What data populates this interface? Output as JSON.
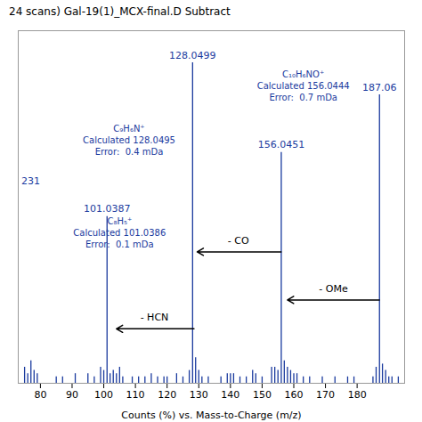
{
  "chart_data": {
    "type": "stem",
    "title": "24 scans) Gal-19(1)_MCX-final.D Subtract",
    "xlabel": "Counts (%) vs. Mass-to-Charge (m/z)",
    "xlim": [
      73,
      195
    ],
    "ylim": [
      0,
      110
    ],
    "xticks": [
      80,
      90,
      100,
      110,
      120,
      130,
      140,
      150,
      160,
      170,
      180
    ],
    "tick_labels": "x",
    "color": "#1a3a9e",
    "x": [
      75,
      76,
      77,
      78,
      79,
      85,
      87,
      91,
      95,
      97,
      99,
      100,
      102,
      103,
      104,
      105,
      106,
      109,
      111,
      113,
      115,
      117,
      119,
      120,
      123,
      125,
      127,
      129,
      130,
      131,
      133,
      137,
      139,
      140,
      141,
      143,
      145,
      147,
      148,
      150,
      153,
      154,
      155,
      157,
      158,
      159,
      160,
      161,
      163,
      165,
      169,
      173,
      177,
      179,
      185,
      186,
      188,
      189,
      190,
      191,
      193,
      101.0387,
      128.0499,
      156.0451,
      187.06
    ],
    "values": [
      5,
      3,
      7,
      4,
      3,
      2,
      2,
      3,
      3,
      2,
      5,
      4,
      3,
      4,
      3,
      5,
      2,
      2,
      2,
      2,
      3,
      2,
      2,
      2,
      3,
      2,
      4,
      8,
      4,
      2,
      2,
      2,
      3,
      3,
      3,
      2,
      2,
      4,
      3,
      2,
      5,
      5,
      4,
      7,
      5,
      4,
      3,
      3,
      2,
      2,
      2,
      2,
      2,
      2,
      2,
      5,
      6,
      4,
      2,
      2,
      2,
      52,
      100,
      72,
      90
    ],
    "peak_labels": [
      {
        "text": "128.0499",
        "x": 128.0499,
        "y": 100
      },
      {
        "text": "156.0451",
        "x": 156.0451,
        "y": 72
      },
      {
        "text": "101.0387",
        "x": 101.0387,
        "y": 52
      },
      {
        "text": "187.06",
        "x": 187.06,
        "y": 90
      }
    ],
    "formula_annotations": [
      {
        "text": "C₉H₆N⁺\nCalculated 128.0495\nError:  0.4 mDa",
        "x": 108,
        "y": 76
      },
      {
        "text": "C₁₀H₆NO⁺\nCalculated 156.0444\nError:  0.7 mDa",
        "x": 163,
        "y": 93
      },
      {
        "text": "C₈H₅⁺\nCalculated 101.0386\nError:  0.1 mDa",
        "x": 105,
        "y": 47
      }
    ],
    "partial_label": {
      "text": "231",
      "x": 74.0,
      "y": 62
    },
    "arrows": [
      {
        "text": "- CO",
        "x_tail": 156.0,
        "x_head": 129.5,
        "y": 41,
        "text_x": 142.5,
        "text_y": 43.5
      },
      {
        "text": "- OMe",
        "x_tail": 187.0,
        "x_head": 158.0,
        "y": 26,
        "text_x": 172.5,
        "text_y": 28.5
      },
      {
        "text": "- HCN",
        "x_tail": 128.5,
        "x_head": 104.0,
        "y": 17,
        "text_x": 116.0,
        "text_y": 19.5
      }
    ]
  }
}
